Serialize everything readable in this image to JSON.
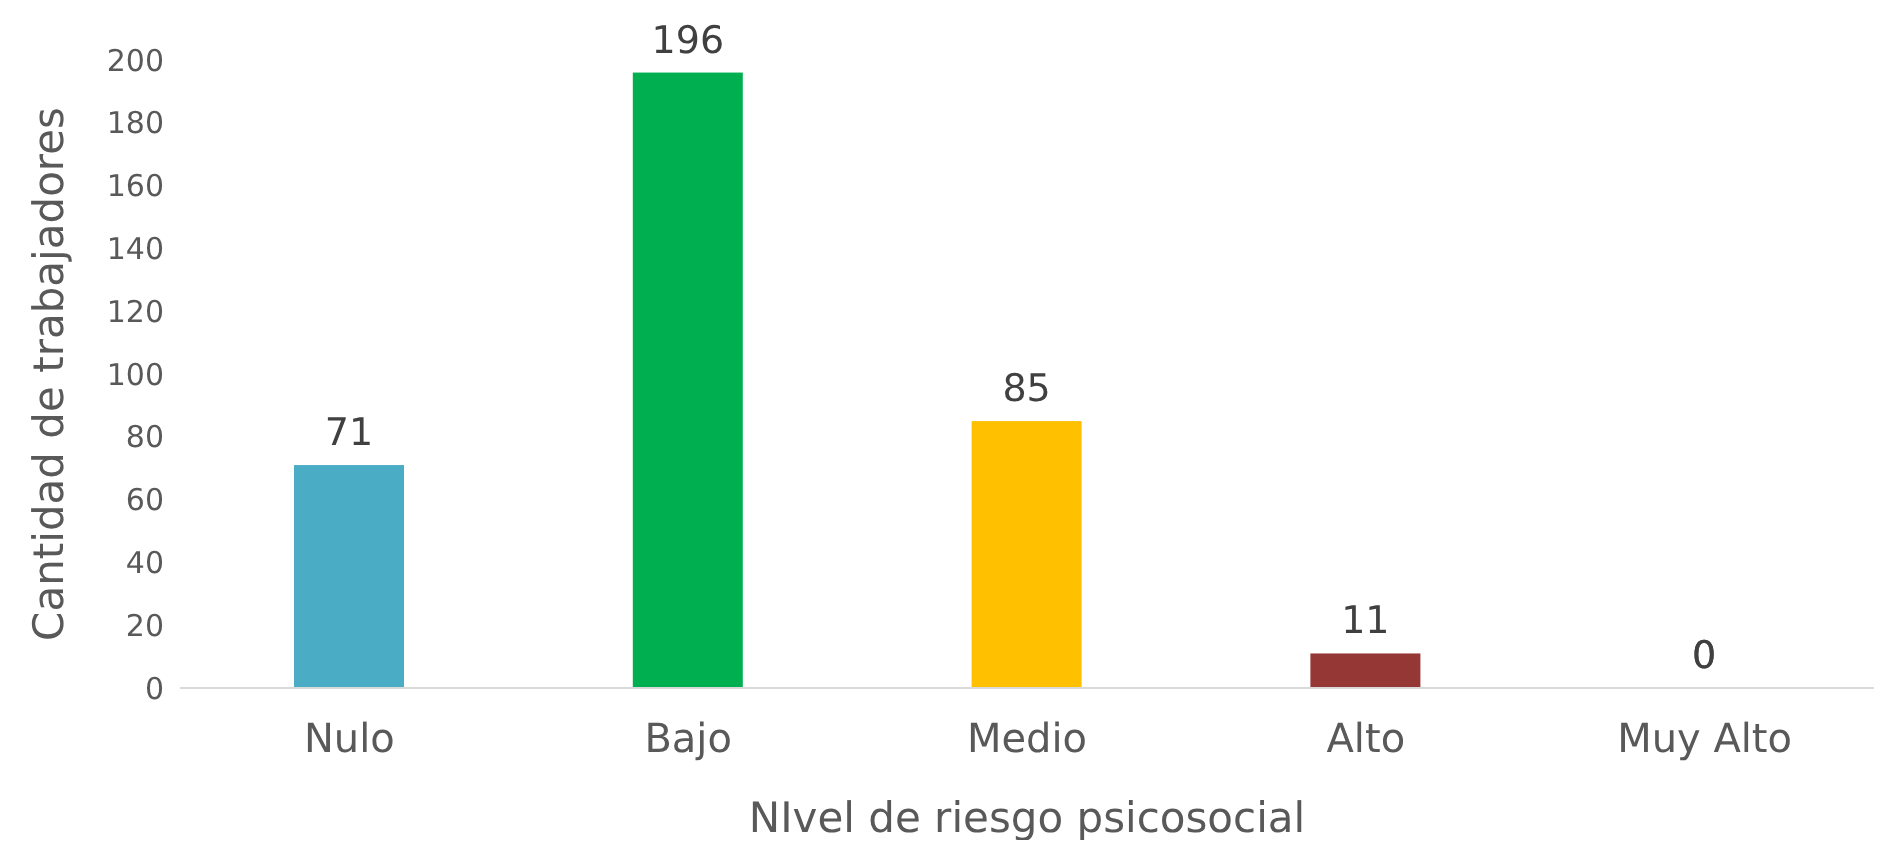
{
  "chart_data": {
    "type": "bar",
    "xlabel": "NIvel de riesgo psicosocial",
    "ylabel": "Cantidad de trabajadores",
    "categories": [
      "Nulo",
      "Bajo",
      "Medio",
      "Alto",
      "Muy Alto"
    ],
    "values": [
      71,
      196,
      85,
      11,
      0
    ],
    "colors": [
      "#4bacc6",
      "#00b050",
      "#ffc000",
      "#953735",
      "#c0504d"
    ],
    "ylim": [
      0,
      200
    ],
    "yticks": [
      0,
      20,
      40,
      60,
      80,
      100,
      120,
      140,
      160,
      180,
      200
    ],
    "grid": false,
    "data_labels": true
  }
}
